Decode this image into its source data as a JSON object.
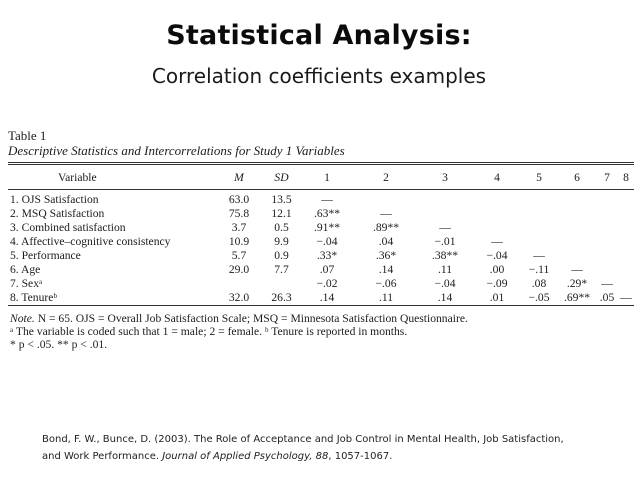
{
  "slide": {
    "title": "Statistical Analysis:",
    "subtitle": "Correlation coefficients examples"
  },
  "table": {
    "label": "Table 1",
    "caption": "Descriptive Statistics and Intercorrelations for Study 1 Variables",
    "columns": [
      "Variable",
      "M",
      "SD",
      "1",
      "2",
      "3",
      "4",
      "5",
      "6",
      "7",
      "8"
    ],
    "rows": [
      {
        "variable": "1. OJS Satisfaction",
        "cells": [
          "63.0",
          "13.5",
          "—",
          "",
          "",
          "",
          "",
          "",
          "",
          ""
        ]
      },
      {
        "variable": "2. MSQ Satisfaction",
        "cells": [
          "75.8",
          "12.1",
          ".63**",
          "—",
          "",
          "",
          "",
          "",
          "",
          ""
        ]
      },
      {
        "variable": "3. Combined satisfaction",
        "cells": [
          "3.7",
          "0.5",
          ".91**",
          ".89**",
          "—",
          "",
          "",
          "",
          "",
          ""
        ]
      },
      {
        "variable": "4. Affective–cognitive consistency",
        "cells": [
          "10.9",
          "9.9",
          "−.04",
          ".04",
          "−.01",
          "—",
          "",
          "",
          "",
          ""
        ]
      },
      {
        "variable": "5. Performance",
        "cells": [
          "5.7",
          "0.9",
          ".33*",
          ".36*",
          ".38**",
          "−.04",
          "—",
          "",
          "",
          ""
        ]
      },
      {
        "variable": "6. Age",
        "cells": [
          "29.0",
          "7.7",
          ".07",
          ".14",
          ".11",
          ".00",
          "−.11",
          "—",
          "",
          ""
        ]
      },
      {
        "variable": "7. Sexᵃ",
        "cells": [
          "",
          "",
          "−.02",
          "−.06",
          "−.04",
          "−.09",
          ".08",
          ".29*",
          "—",
          ""
        ]
      },
      {
        "variable": "8. Tenureᵇ",
        "cells": [
          "32.0",
          "26.3",
          ".14",
          ".11",
          ".14",
          ".01",
          "−.05",
          ".69**",
          ".05",
          "—"
        ]
      }
    ],
    "note": {
      "label": "Note.",
      "line1": "N = 65. OJS = Overall Job Satisfaction Scale; MSQ = Minnesota Satisfaction Questionnaire.",
      "line2": "ᵃ The variable is coded such that 1 = male; 2 = female.   ᵇ Tenure is reported in months.",
      "line3": "* p < .05.   ** p < .01."
    }
  },
  "citation": {
    "authors": "Bond, F. W., Bunce, D. (2003). The Role of Acceptance and Job Control in Mental Health, Job Satisfaction,",
    "lead": "and Work Performance. ",
    "journal": "Journal of Applied Psychology, 88",
    "pages": ", 1057-1067."
  }
}
